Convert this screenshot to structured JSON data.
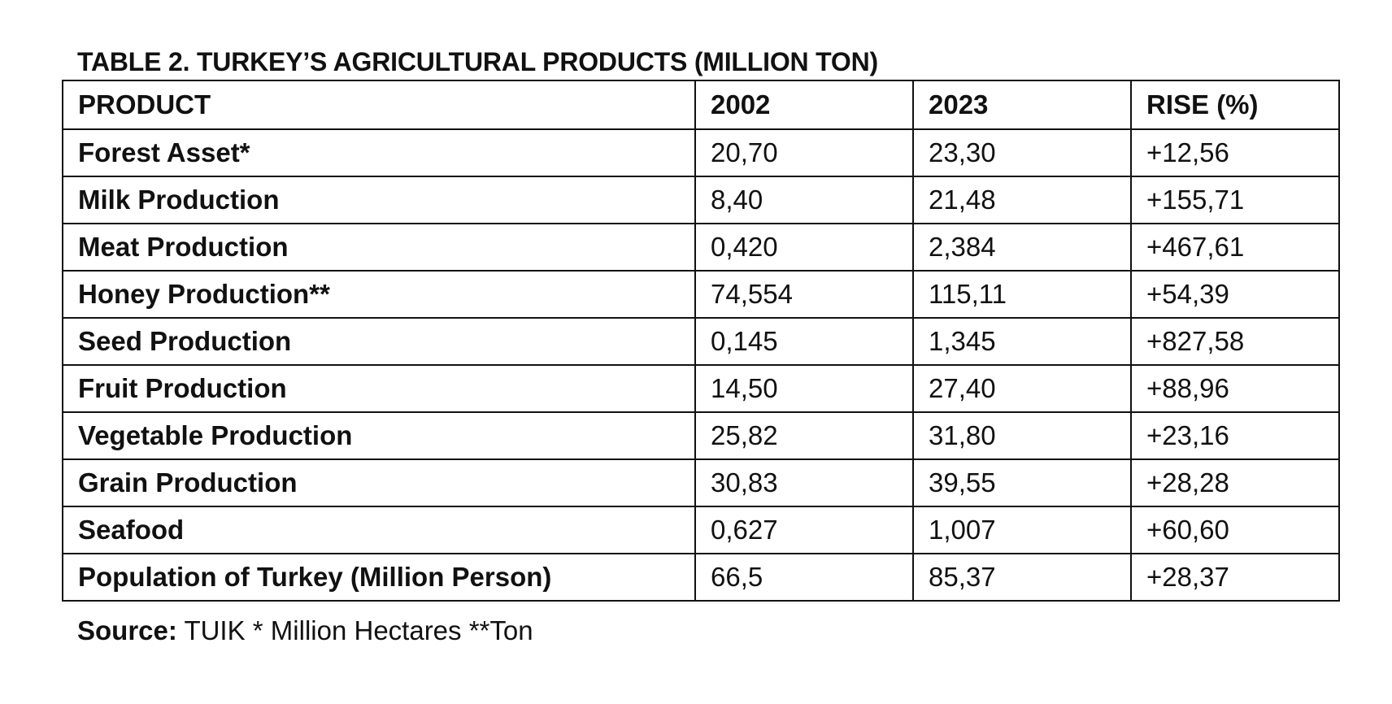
{
  "table": {
    "title": "TABLE 2. TURKEY’S AGRICULTURAL PRODUCTS (MILLION TON)",
    "headers": [
      "PRODUCT",
      "2002",
      "2023",
      "RISE (%)"
    ],
    "rows": [
      [
        "Forest Asset*",
        "20,70",
        "23,30",
        "+12,56"
      ],
      [
        "Milk Production",
        "8,40",
        "21,48",
        "+155,71"
      ],
      [
        "Meat Production",
        "0,420",
        "2,384",
        "+467,61"
      ],
      [
        "Honey Production**",
        "74,554",
        "115,11",
        "+54,39"
      ],
      [
        "Seed Production",
        "0,145",
        "1,345",
        "+827,58"
      ],
      [
        "Fruit Production",
        "14,50",
        "27,40",
        "+88,96"
      ],
      [
        "Vegetable Production",
        "25,82",
        "31,80",
        "+23,16"
      ],
      [
        "Grain Production",
        "30,83",
        "39,55",
        "+28,28"
      ],
      [
        "Seafood",
        "0,627",
        "1,007",
        "+60,60"
      ],
      [
        "Population of Turkey (Million Person)",
        "66,5",
        "85,37",
        "+28,37"
      ]
    ]
  },
  "source": {
    "label": "Source:",
    "text": " TUIK * Million Hectares **Ton"
  }
}
